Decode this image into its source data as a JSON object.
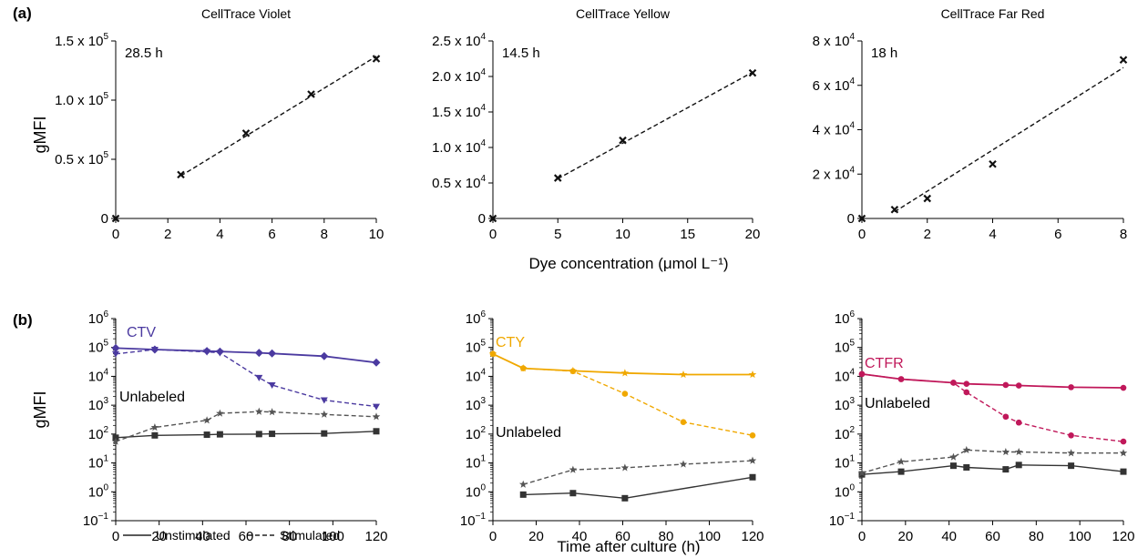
{
  "figure": {
    "panel_a_label": "(a)",
    "panel_b_label": "(b)",
    "ylabel_a": "gMFI",
    "ylabel_b": "gMFI",
    "xlabel_a": "Dye concentration (μmol L⁻¹)",
    "xlabel_b": "Time after culture (h)",
    "legend": {
      "solid_label": "Unstimulated",
      "dashed_label": "Stimulated"
    }
  },
  "chart_data": [
    {
      "id": "a1",
      "type": "scatter",
      "title": "CellTrace Violet",
      "annotation": "28.5 h",
      "xlim": [
        0,
        10
      ],
      "xticks": [
        0,
        2,
        4,
        6,
        8,
        10
      ],
      "ylim": [
        0,
        150000
      ],
      "yticks": [
        {
          "value": 0,
          "label": "0",
          "mant": "",
          "exp": ""
        },
        {
          "value": 50000,
          "label": "",
          "mant": "0.5 x 10",
          "exp": "5"
        },
        {
          "value": 100000,
          "label": "",
          "mant": "1.0 x 10",
          "exp": "5"
        },
        {
          "value": 150000,
          "label": "",
          "mant": "1.5 x 10",
          "exp": "5"
        }
      ],
      "points": [
        [
          0,
          0
        ],
        [
          2.5,
          37000
        ],
        [
          5,
          72000
        ],
        [
          7.5,
          105000
        ],
        [
          10,
          135000
        ]
      ],
      "fit": [
        [
          2.5,
          36000
        ],
        [
          10,
          137000
        ]
      ]
    },
    {
      "id": "a2",
      "type": "scatter",
      "title": "CellTrace Yellow",
      "annotation": "14.5 h",
      "xlim": [
        0,
        20
      ],
      "xticks": [
        0,
        5,
        10,
        15,
        20
      ],
      "ylim": [
        0,
        25000
      ],
      "yticks": [
        {
          "value": 0,
          "label": "0",
          "mant": "",
          "exp": ""
        },
        {
          "value": 5000,
          "label": "",
          "mant": "0.5 x 10",
          "exp": "4"
        },
        {
          "value": 10000,
          "label": "",
          "mant": "1.0 x 10",
          "exp": "4"
        },
        {
          "value": 15000,
          "label": "",
          "mant": "1.5 x 10",
          "exp": "4"
        },
        {
          "value": 20000,
          "label": "",
          "mant": "2.0 x 10",
          "exp": "4"
        },
        {
          "value": 25000,
          "label": "",
          "mant": "2.5 x 10",
          "exp": "4"
        }
      ],
      "points": [
        [
          0,
          0
        ],
        [
          5,
          5700
        ],
        [
          10,
          11000
        ],
        [
          20,
          20500
        ]
      ],
      "fit": [
        [
          5,
          5600
        ],
        [
          20,
          20600
        ]
      ]
    },
    {
      "id": "a3",
      "type": "scatter",
      "title": "CellTrace Far Red",
      "annotation": "18 h",
      "xlim": [
        0,
        8
      ],
      "xticks": [
        0,
        2,
        4,
        6,
        8
      ],
      "ylim": [
        0,
        80000
      ],
      "yticks": [
        {
          "value": 0,
          "label": "0",
          "mant": "",
          "exp": ""
        },
        {
          "value": 20000,
          "label": "",
          "mant": "2 x 10",
          "exp": "4"
        },
        {
          "value": 40000,
          "label": "",
          "mant": "4 x 10",
          "exp": "4"
        },
        {
          "value": 60000,
          "label": "",
          "mant": "6 x 10",
          "exp": "4"
        },
        {
          "value": 80000,
          "label": "",
          "mant": "8 x 10",
          "exp": "4"
        }
      ],
      "points": [
        [
          0,
          0
        ],
        [
          1,
          4000
        ],
        [
          2,
          9000
        ],
        [
          4,
          24500
        ],
        [
          8,
          71500
        ]
      ],
      "fit": [
        [
          1,
          3000
        ],
        [
          8,
          68000
        ]
      ]
    },
    {
      "id": "b1",
      "type": "line",
      "log_y": true,
      "xlim": [
        0,
        120
      ],
      "xticks": [
        0,
        20,
        40,
        60,
        80,
        100,
        120
      ],
      "ylim_exp": [
        -1,
        6
      ],
      "dye_label": "CTV",
      "dye_color": "#4b3aa0",
      "unlabeled_label": "Unlabeled",
      "series": [
        {
          "name": "CTV",
          "condition": "Unstimulated",
          "style": "solid",
          "color": "#4b3aa0",
          "marker": "diamond",
          "points": [
            [
              0,
              95000
            ],
            [
              18,
              85000
            ],
            [
              42,
              75000
            ],
            [
              48,
              72000
            ],
            [
              66,
              65000
            ],
            [
              72,
              62000
            ],
            [
              96,
              50000
            ],
            [
              120,
              30000
            ]
          ]
        },
        {
          "name": "CTV",
          "condition": "Stimulated",
          "style": "dashed",
          "color": "#4b3aa0",
          "marker": "triangle",
          "points": [
            [
              0,
              60000
            ],
            [
              18,
              85000
            ],
            [
              42,
              70000
            ],
            [
              48,
              65000
            ],
            [
              66,
              9000
            ],
            [
              72,
              5000
            ],
            [
              96,
              1500
            ],
            [
              120,
              900
            ]
          ]
        },
        {
          "name": "Unlabeled",
          "condition": "Unstimulated",
          "style": "solid",
          "color": "#333333",
          "marker": "square",
          "points": [
            [
              0,
              75
            ],
            [
              18,
              90
            ],
            [
              42,
              95
            ],
            [
              48,
              98
            ],
            [
              66,
              100
            ],
            [
              72,
              102
            ],
            [
              96,
              105
            ],
            [
              120,
              125
            ]
          ]
        },
        {
          "name": "Unlabeled",
          "condition": "Stimulated",
          "style": "dashed",
          "color": "#555555",
          "marker": "star",
          "points": [
            [
              0,
              55
            ],
            [
              18,
              170
            ],
            [
              42,
              300
            ],
            [
              48,
              520
            ],
            [
              66,
              600
            ],
            [
              72,
              580
            ],
            [
              96,
              480
            ],
            [
              120,
              400
            ]
          ]
        }
      ]
    },
    {
      "id": "b2",
      "type": "line",
      "log_y": true,
      "xlim": [
        0,
        120
      ],
      "xticks": [
        0,
        20,
        40,
        60,
        80,
        100,
        120
      ],
      "ylim_exp": [
        -1,
        6
      ],
      "dye_label": "CTY",
      "dye_color": "#f0a800",
      "unlabeled_label": "Unlabeled",
      "series": [
        {
          "name": "CTY",
          "condition": "Unstimulated",
          "style": "solid",
          "color": "#f0a800",
          "marker": "star",
          "points": [
            [
              0,
              60000
            ],
            [
              14,
              19000
            ],
            [
              37,
              15500
            ],
            [
              61,
              13000
            ],
            [
              88,
              11500
            ],
            [
              120,
              11500
            ]
          ]
        },
        {
          "name": "CTY",
          "condition": "Stimulated",
          "style": "dashed",
          "color": "#f0a800",
          "marker": "circle",
          "points": [
            [
              0,
              60000
            ],
            [
              14,
              19000
            ],
            [
              37,
              15000
            ],
            [
              61,
              2500
            ],
            [
              88,
              260
            ],
            [
              120,
              90
            ]
          ]
        },
        {
          "name": "Unlabeled",
          "condition": "Unstimulated",
          "style": "solid",
          "color": "#333333",
          "marker": "square",
          "points": [
            [
              14,
              0.8
            ],
            [
              37,
              0.9
            ],
            [
              61,
              0.6
            ],
            [
              120,
              3.2
            ]
          ]
        },
        {
          "name": "Unlabeled",
          "condition": "Stimulated",
          "style": "dashed",
          "color": "#555555",
          "marker": "star",
          "points": [
            [
              14,
              1.8
            ],
            [
              37,
              5.8
            ],
            [
              61,
              6.8
            ],
            [
              88,
              9
            ],
            [
              120,
              12
            ]
          ]
        }
      ]
    },
    {
      "id": "b3",
      "type": "line",
      "log_y": true,
      "xlim": [
        0,
        120
      ],
      "xticks": [
        0,
        20,
        40,
        60,
        80,
        100,
        120
      ],
      "ylim_exp": [
        -1,
        6
      ],
      "dye_label": "CTFR",
      "dye_color": "#c0185a",
      "unlabeled_label": "Unlabeled",
      "series": [
        {
          "name": "CTFR",
          "condition": "Unstimulated",
          "style": "solid",
          "color": "#c0185a",
          "marker": "circle",
          "points": [
            [
              0,
              12000
            ],
            [
              18,
              8000
            ],
            [
              42,
              6000
            ],
            [
              48,
              5500
            ],
            [
              66,
              5000
            ],
            [
              72,
              4800
            ],
            [
              96,
              4200
            ],
            [
              120,
              4000
            ]
          ]
        },
        {
          "name": "CTFR",
          "condition": "Stimulated",
          "style": "dashed",
          "color": "#c0185a",
          "marker": "circle",
          "points": [
            [
              0,
              12000
            ],
            [
              18,
              8000
            ],
            [
              42,
              6000
            ],
            [
              48,
              2800
            ],
            [
              66,
              400
            ],
            [
              72,
              250
            ],
            [
              96,
              90
            ],
            [
              120,
              55
            ]
          ]
        },
        {
          "name": "Unlabeled",
          "condition": "Unstimulated",
          "style": "solid",
          "color": "#333333",
          "marker": "square",
          "points": [
            [
              0,
              4
            ],
            [
              18,
              5
            ],
            [
              42,
              8
            ],
            [
              48,
              7
            ],
            [
              66,
              6
            ],
            [
              72,
              8.5
            ],
            [
              96,
              8
            ],
            [
              120,
              5
            ]
          ]
        },
        {
          "name": "Unlabeled",
          "condition": "Stimulated",
          "style": "dashed",
          "color": "#555555",
          "marker": "star",
          "points": [
            [
              0,
              4.5
            ],
            [
              18,
              11
            ],
            [
              42,
              16
            ],
            [
              48,
              28
            ],
            [
              66,
              24
            ],
            [
              72,
              24
            ],
            [
              96,
              22
            ],
            [
              120,
              22
            ]
          ]
        }
      ]
    }
  ]
}
